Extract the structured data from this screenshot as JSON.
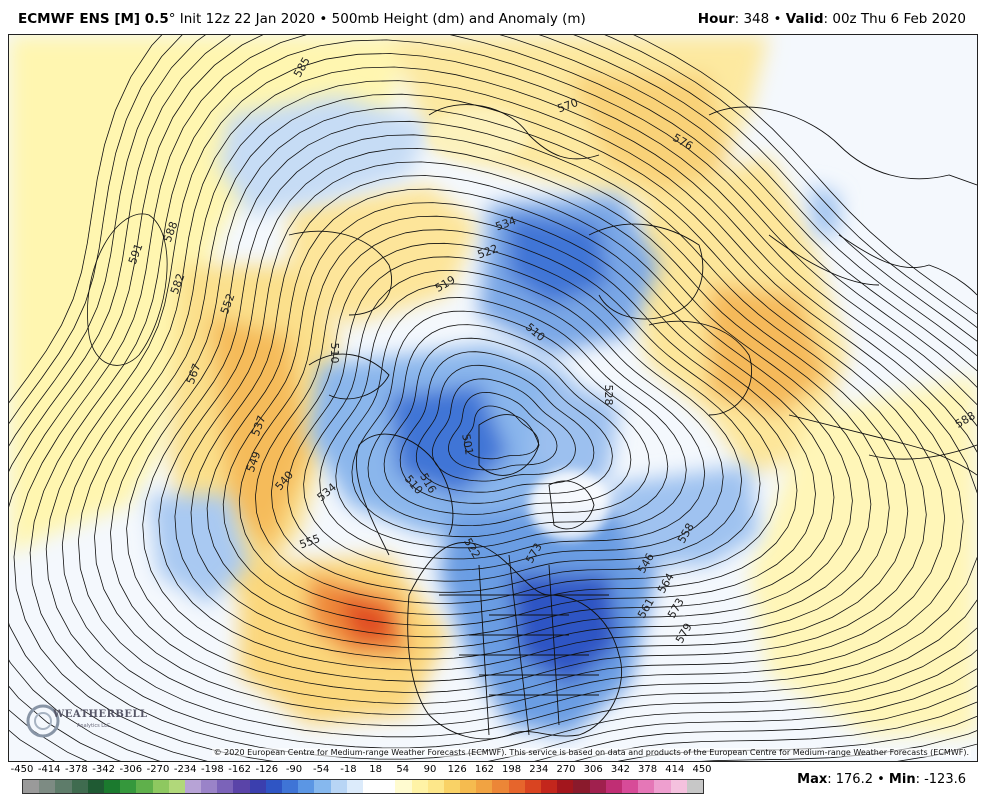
{
  "header": {
    "model": "ECMWF ENS [M] 0.5",
    "degree": "°",
    "init": " Init 12z 22 Jan 2020",
    "bullet": " • ",
    "field": "500mb Height (dm) and Anomaly (m)",
    "hour_label": "Hour",
    "hour_value": ": 348",
    "valid_label": "Valid",
    "valid_value": ": 00z Thu 6 Feb 2020"
  },
  "map": {
    "copyright": "© 2020 European Centre for Medium-range Weather Forecasts (ECMWF). This service is based on data and products of the European Centre for Medium-range Weather Forecasts (ECMWF).",
    "logo_text": "WEATHERBELL",
    "logo_sub": "Analytics LLC",
    "contour_labels": [
      "585",
      "570",
      "576",
      "591",
      "588",
      "582",
      "552",
      "567",
      "537",
      "549",
      "540",
      "534",
      "555",
      "519",
      "522",
      "534",
      "510",
      "510",
      "501",
      "516",
      "522",
      "528",
      "510",
      "546",
      "558",
      "564",
      "561",
      "573",
      "579",
      "588",
      "573"
    ]
  },
  "colorbar": {
    "ticks": [
      "-450",
      "-414",
      "-378",
      "-342",
      "-306",
      "-270",
      "-234",
      "-198",
      "-162",
      "-126",
      "-90",
      "-54",
      "-18",
      "18",
      "54",
      "90",
      "126",
      "162",
      "198",
      "234",
      "270",
      "306",
      "342",
      "378",
      "414",
      "450"
    ],
    "colors": [
      "#9a9a9a",
      "#7d8b83",
      "#5e7c6a",
      "#3f6b4f",
      "#1f5a33",
      "#1b7a2e",
      "#35983c",
      "#5fb04b",
      "#8ec860",
      "#b1d87a",
      "#b7a3d6",
      "#9a83c8",
      "#7b63b9",
      "#5a44a8",
      "#3b3fae",
      "#2f55c4",
      "#3f74d6",
      "#5b96e4",
      "#86b8ee",
      "#b8d5f5",
      "#dcebfb",
      "#ffffff",
      "#ffffff",
      "#fffbd0",
      "#fff3a6",
      "#fde78a",
      "#f9d266",
      "#f5bb4f",
      "#f1a342",
      "#ec8637",
      "#e6652c",
      "#d94421",
      "#c3261c",
      "#a3161d",
      "#8a1a2c",
      "#a0204e",
      "#c02e74",
      "#d74b98",
      "#e577b7",
      "#ee9fcf",
      "#f4c1de",
      "#c7c7c7"
    ],
    "max_label": "Max",
    "max_value": ": 176.2",
    "min_label": "Min",
    "min_value": ": -123.6"
  }
}
